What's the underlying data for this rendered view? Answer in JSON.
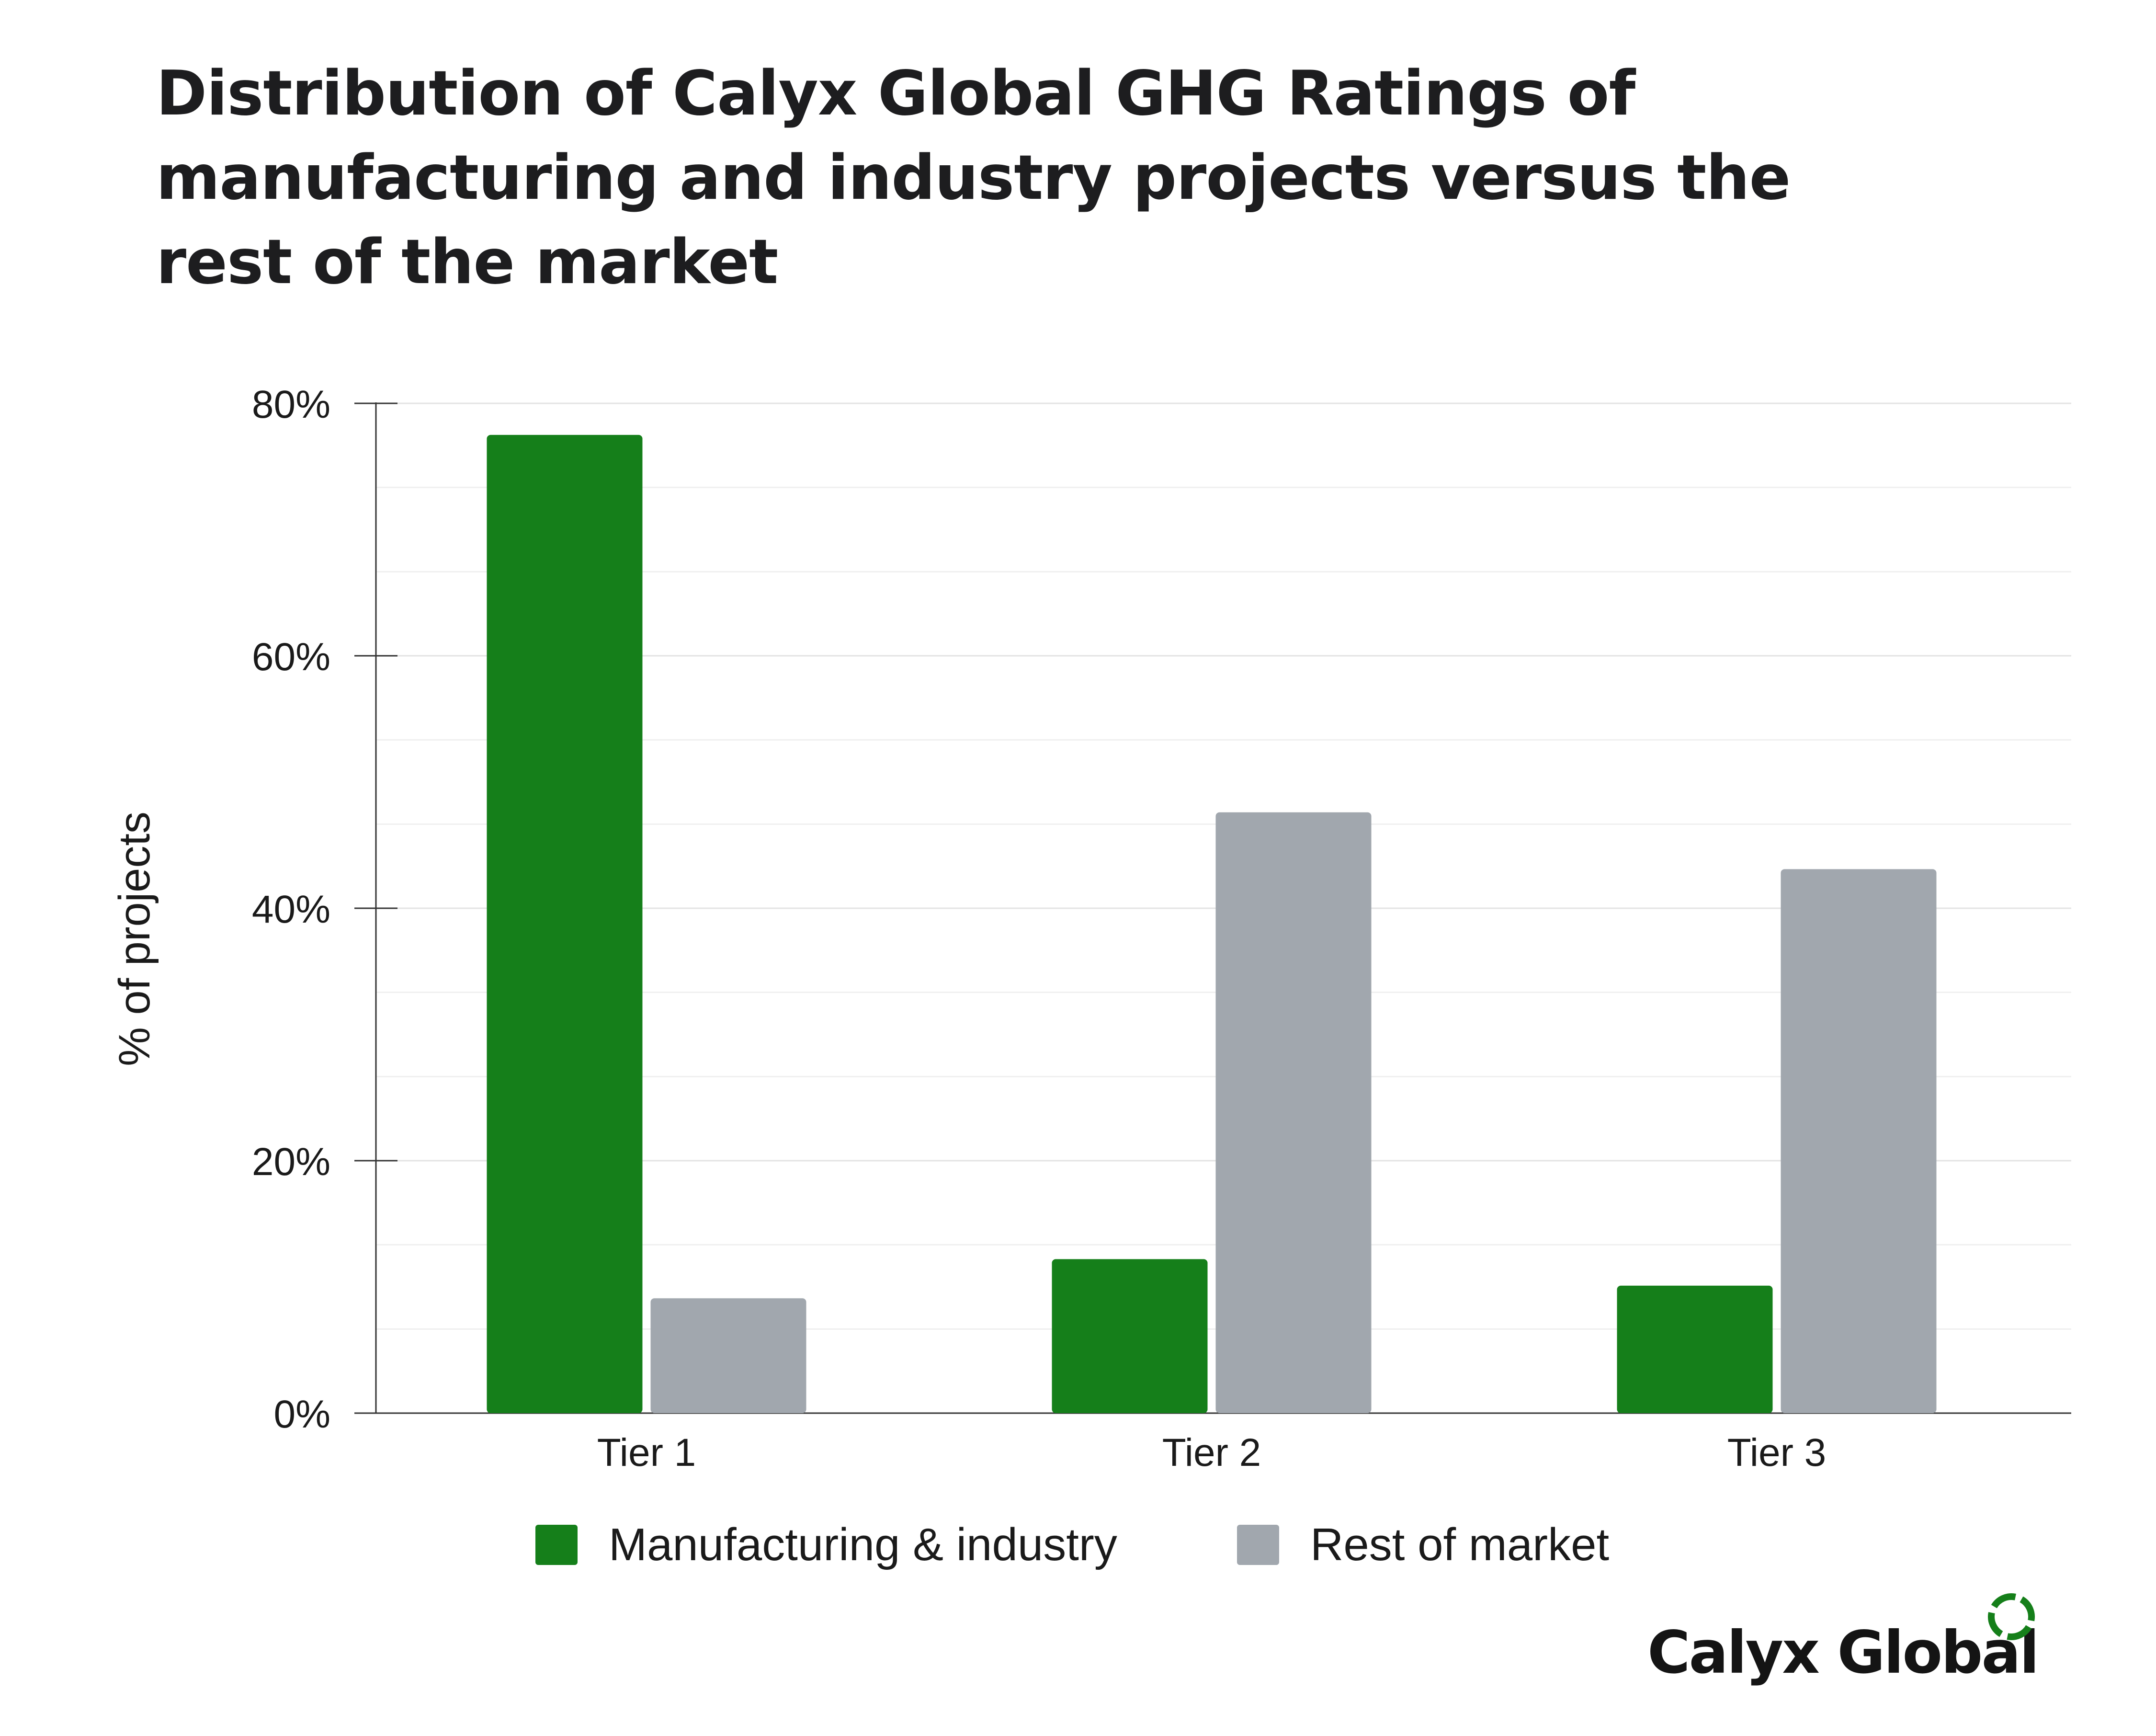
{
  "chart_data": {
    "type": "bar",
    "title": "Distribution of Calyx Global GHG Ratings of manufacturing and industry projects versus the rest of the market",
    "xlabel": "",
    "ylabel": "% of projects",
    "categories": [
      "Tier 1",
      "Tier 2",
      "Tier 3"
    ],
    "series": [
      {
        "name": "Manufacturing & industry",
        "values": [
          77.5,
          12.2,
          10.1
        ],
        "color": "#157f1a"
      },
      {
        "name": "Rest of market",
        "values": [
          9.1,
          47.6,
          43.1
        ],
        "color": "#a1a7ae"
      }
    ],
    "ylim": [
      0,
      80
    ],
    "yticks": [
      0,
      20,
      40,
      60,
      80
    ],
    "ytick_labels": [
      "0%",
      "20%",
      "40%",
      "60%",
      "80%"
    ],
    "minor_gridlines": true,
    "legend_position": "bottom-center"
  },
  "brand": {
    "name": "Calyx Global",
    "logo_icon": "dashed-ring-icon",
    "logo_color": "#157f1a"
  }
}
